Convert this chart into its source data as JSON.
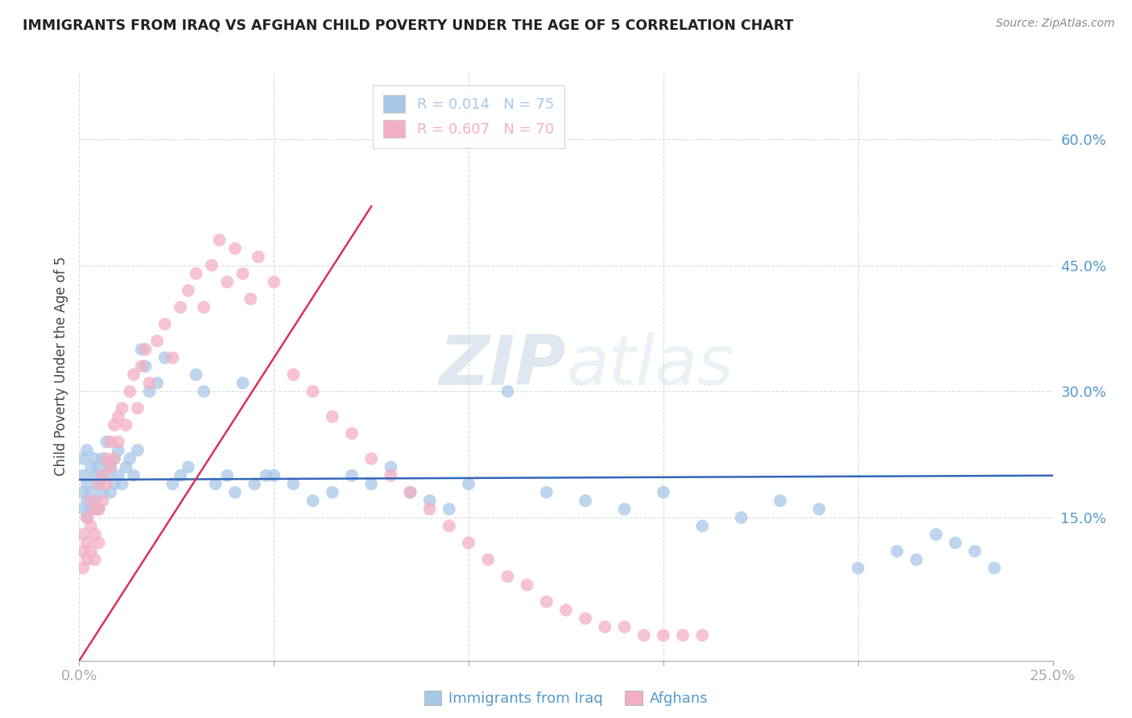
{
  "title": "IMMIGRANTS FROM IRAQ VS AFGHAN CHILD POVERTY UNDER THE AGE OF 5 CORRELATION CHART",
  "source": "Source: ZipAtlas.com",
  "ylabel": "Child Poverty Under the Age of 5",
  "y_tick_labels": [
    "15.0%",
    "30.0%",
    "45.0%",
    "60.0%"
  ],
  "y_tick_values": [
    0.15,
    0.3,
    0.45,
    0.6
  ],
  "x_range": [
    0.0,
    0.25
  ],
  "y_range": [
    -0.02,
    0.68
  ],
  "legend_iraq_color": "#a8c8e8",
  "legend_afghan_color": "#f4afc4",
  "trendline_iraq_color": "#3366bb",
  "trendline_afghan_color": "#d93060",
  "watermark": "ZIPatlas",
  "iraq_x": [
    0.001,
    0.001,
    0.001,
    0.001,
    0.002,
    0.002,
    0.002,
    0.002,
    0.003,
    0.003,
    0.003,
    0.004,
    0.004,
    0.004,
    0.005,
    0.005,
    0.005,
    0.006,
    0.006,
    0.007,
    0.007,
    0.008,
    0.008,
    0.009,
    0.009,
    0.01,
    0.01,
    0.011,
    0.012,
    0.013,
    0.014,
    0.015,
    0.016,
    0.017,
    0.018,
    0.02,
    0.022,
    0.024,
    0.026,
    0.028,
    0.03,
    0.032,
    0.035,
    0.038,
    0.04,
    0.042,
    0.045,
    0.048,
    0.05,
    0.055,
    0.06,
    0.065,
    0.07,
    0.075,
    0.08,
    0.085,
    0.09,
    0.095,
    0.1,
    0.11,
    0.12,
    0.13,
    0.14,
    0.15,
    0.16,
    0.17,
    0.18,
    0.19,
    0.2,
    0.21,
    0.215,
    0.22,
    0.225,
    0.23,
    0.235
  ],
  "iraq_y": [
    0.2,
    0.22,
    0.18,
    0.16,
    0.23,
    0.19,
    0.17,
    0.15,
    0.21,
    0.18,
    0.16,
    0.22,
    0.2,
    0.17,
    0.21,
    0.19,
    0.16,
    0.22,
    0.18,
    0.24,
    0.2,
    0.21,
    0.18,
    0.22,
    0.19,
    0.23,
    0.2,
    0.19,
    0.21,
    0.22,
    0.2,
    0.23,
    0.35,
    0.33,
    0.3,
    0.31,
    0.34,
    0.19,
    0.2,
    0.21,
    0.32,
    0.3,
    0.19,
    0.2,
    0.18,
    0.31,
    0.19,
    0.2,
    0.2,
    0.19,
    0.17,
    0.18,
    0.2,
    0.19,
    0.21,
    0.18,
    0.17,
    0.16,
    0.19,
    0.3,
    0.18,
    0.17,
    0.16,
    0.18,
    0.14,
    0.15,
    0.17,
    0.16,
    0.09,
    0.11,
    0.1,
    0.13,
    0.12,
    0.11,
    0.09
  ],
  "afghan_x": [
    0.001,
    0.001,
    0.001,
    0.002,
    0.002,
    0.002,
    0.003,
    0.003,
    0.003,
    0.004,
    0.004,
    0.004,
    0.005,
    0.005,
    0.005,
    0.006,
    0.006,
    0.007,
    0.007,
    0.008,
    0.008,
    0.009,
    0.009,
    0.01,
    0.01,
    0.011,
    0.012,
    0.013,
    0.014,
    0.015,
    0.016,
    0.017,
    0.018,
    0.02,
    0.022,
    0.024,
    0.026,
    0.028,
    0.03,
    0.032,
    0.034,
    0.036,
    0.038,
    0.04,
    0.042,
    0.044,
    0.046,
    0.05,
    0.055,
    0.06,
    0.065,
    0.07,
    0.075,
    0.08,
    0.085,
    0.09,
    0.095,
    0.1,
    0.105,
    0.11,
    0.115,
    0.12,
    0.125,
    0.13,
    0.135,
    0.14,
    0.145,
    0.15,
    0.155,
    0.16
  ],
  "afghan_y": [
    0.13,
    0.11,
    0.09,
    0.15,
    0.12,
    0.1,
    0.17,
    0.14,
    0.11,
    0.16,
    0.13,
    0.1,
    0.19,
    0.16,
    0.12,
    0.2,
    0.17,
    0.22,
    0.19,
    0.24,
    0.21,
    0.26,
    0.22,
    0.27,
    0.24,
    0.28,
    0.26,
    0.3,
    0.32,
    0.28,
    0.33,
    0.35,
    0.31,
    0.36,
    0.38,
    0.34,
    0.4,
    0.42,
    0.44,
    0.4,
    0.45,
    0.48,
    0.43,
    0.47,
    0.44,
    0.41,
    0.46,
    0.43,
    0.32,
    0.3,
    0.27,
    0.25,
    0.22,
    0.2,
    0.18,
    0.16,
    0.14,
    0.12,
    0.1,
    0.08,
    0.07,
    0.05,
    0.04,
    0.03,
    0.02,
    0.02,
    0.01,
    0.01,
    0.01,
    0.01
  ],
  "iraq_trendline_x": [
    0.0,
    0.25
  ],
  "iraq_trendline_y": [
    0.195,
    0.2
  ],
  "afghan_trendline_x0": 0.0,
  "afghan_trendline_y0": -0.02,
  "afghan_trendline_x1": 0.075,
  "afghan_trendline_y1": 0.52
}
